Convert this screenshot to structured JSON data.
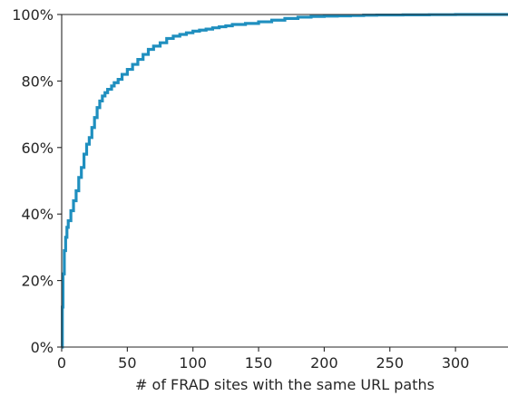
{
  "chart_data": {
    "type": "line",
    "title": "",
    "xlabel": "# of FRAD sites with the same URL paths",
    "ylabel": "",
    "xlim": [
      0,
      340
    ],
    "ylim": [
      0,
      100
    ],
    "x_ticks": [
      0,
      50,
      100,
      150,
      200,
      250,
      300
    ],
    "x_tick_labels": [
      "0",
      "50",
      "100",
      "150",
      "200",
      "250",
      "300"
    ],
    "y_ticks": [
      0,
      20,
      40,
      60,
      80,
      100
    ],
    "y_tick_labels": [
      "0%",
      "20%",
      "40%",
      "60%",
      "80%",
      "100%"
    ],
    "grid": false,
    "legend": "none",
    "step": true,
    "color": "#1f8fbf",
    "series": [
      {
        "x": [
          0,
          0.5,
          1,
          2,
          3,
          4,
          5,
          7,
          9,
          11,
          13,
          15,
          17,
          19,
          21,
          23,
          25,
          27,
          29,
          31,
          33,
          35,
          38,
          40,
          43,
          46,
          50,
          54,
          58,
          62,
          66,
          70,
          75,
          80,
          85,
          90,
          95,
          100,
          105,
          110,
          115,
          120,
          125,
          130,
          140,
          150,
          160,
          170,
          180,
          190,
          200,
          210,
          220,
          230,
          240,
          260,
          280,
          300,
          320,
          340
        ],
        "y": [
          0,
          12,
          22,
          29,
          33,
          36,
          38,
          41,
          44,
          47,
          51,
          54,
          58,
          61,
          63,
          66,
          69,
          72,
          74,
          75.5,
          76.5,
          77.5,
          78.5,
          79.5,
          80.5,
          82,
          83.5,
          85,
          86.5,
          88,
          89.5,
          90.5,
          91.5,
          92.8,
          93.5,
          94,
          94.5,
          95,
          95.3,
          95.6,
          96,
          96.3,
          96.6,
          97,
          97.3,
          97.8,
          98.3,
          98.8,
          99.2,
          99.4,
          99.5,
          99.6,
          99.7,
          99.8,
          99.85,
          99.9,
          99.95,
          100,
          100,
          100
        ]
      }
    ]
  }
}
